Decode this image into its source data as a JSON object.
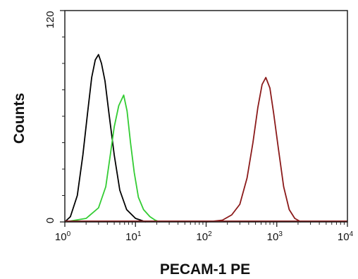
{
  "chart_data": {
    "type": "line",
    "xlabel": "PECAM-1 PE",
    "ylabel": "Counts",
    "x_scale": "log",
    "xlim": [
      1,
      10000
    ],
    "ylim": [
      0,
      120
    ],
    "x_ticks": [
      {
        "base": "10",
        "exp": "0"
      },
      {
        "base": "10",
        "exp": "1"
      },
      {
        "base": "10",
        "exp": "2"
      },
      {
        "base": "10",
        "exp": "3"
      },
      {
        "base": "10",
        "exp": "4"
      }
    ],
    "y_ticks": [
      "0",
      "120"
    ],
    "grid": false,
    "legend": "none",
    "series": [
      {
        "color": "#000000",
        "points": [
          [
            1,
            0
          ],
          [
            1.2,
            3
          ],
          [
            1.5,
            15
          ],
          [
            1.8,
            38
          ],
          [
            2.1,
            62
          ],
          [
            2.4,
            82
          ],
          [
            2.7,
            92
          ],
          [
            3,
            95
          ],
          [
            3.3,
            90
          ],
          [
            3.7,
            80
          ],
          [
            4.2,
            62
          ],
          [
            5,
            38
          ],
          [
            6,
            18
          ],
          [
            7.5,
            7
          ],
          [
            10,
            2
          ],
          [
            14,
            0
          ]
        ]
      },
      {
        "color": "#33cc33",
        "points": [
          [
            1,
            0
          ],
          [
            2,
            2
          ],
          [
            3,
            8
          ],
          [
            3.8,
            20
          ],
          [
            4.4,
            38
          ],
          [
            5,
            54
          ],
          [
            5.8,
            66
          ],
          [
            6.8,
            72
          ],
          [
            7.6,
            63
          ],
          [
            8.5,
            45
          ],
          [
            9.6,
            28
          ],
          [
            11,
            14
          ],
          [
            13,
            7
          ],
          [
            16,
            3
          ],
          [
            19,
            1
          ],
          [
            22,
            0
          ]
        ]
      },
      {
        "color": "#8b1a1a",
        "points": [
          [
            100,
            0
          ],
          [
            170,
            1
          ],
          [
            230,
            4
          ],
          [
            300,
            10
          ],
          [
            380,
            25
          ],
          [
            460,
            45
          ],
          [
            540,
            65
          ],
          [
            620,
            78
          ],
          [
            700,
            82
          ],
          [
            800,
            76
          ],
          [
            900,
            62
          ],
          [
            1050,
            42
          ],
          [
            1250,
            20
          ],
          [
            1500,
            7
          ],
          [
            1800,
            2
          ],
          [
            2200,
            0
          ]
        ]
      }
    ]
  }
}
